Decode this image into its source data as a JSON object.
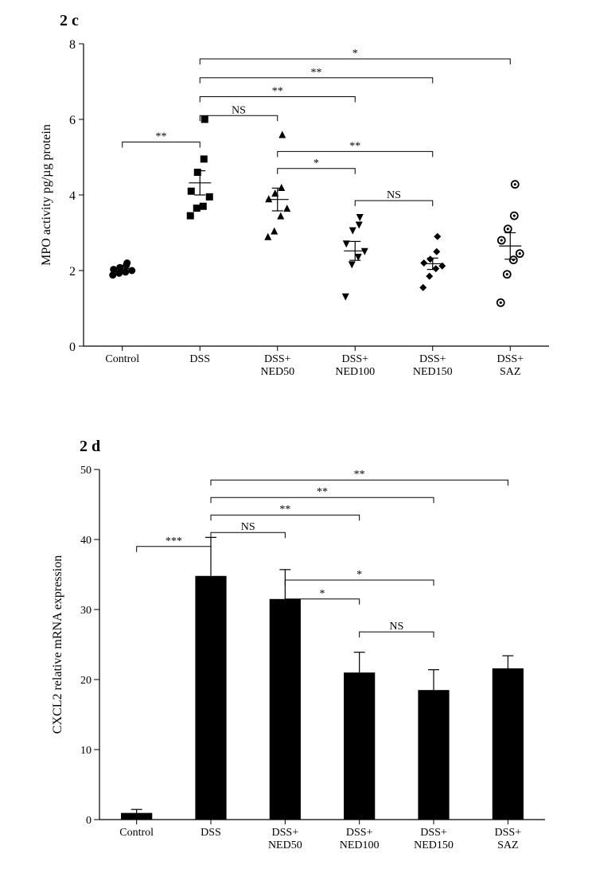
{
  "panel_c": {
    "label": "2 c",
    "type": "scatter",
    "ylabel": "MPO activity pg/µg protein",
    "ylim": [
      0,
      8
    ],
    "yticks": [
      0,
      2,
      4,
      6,
      8
    ],
    "categories": [
      "Control",
      "DSS",
      "DSS+\nNED50",
      "DSS+\nNED100",
      "DSS+\nNED150",
      "DSS+\nSAZ"
    ],
    "label_fontsize": 14,
    "tick_fontsize": 16,
    "cat_fontsize": 14,
    "point_size": 4.5,
    "groups": [
      {
        "marker": "circle",
        "mean": 2.05,
        "sem": 0.08,
        "points": [
          1.88,
          1.93,
          1.96,
          2.0,
          2.03,
          2.08,
          2.14,
          2.2
        ]
      },
      {
        "marker": "square",
        "mean": 4.32,
        "sem": 0.32,
        "points": [
          3.45,
          3.65,
          3.7,
          3.95,
          4.1,
          4.6,
          4.95,
          6.0
        ]
      },
      {
        "marker": "triangle-up",
        "mean": 3.88,
        "sem": 0.3,
        "points": [
          2.9,
          3.05,
          3.45,
          3.65,
          3.9,
          4.05,
          4.2,
          5.6
        ]
      },
      {
        "marker": "triangle-down",
        "mean": 2.52,
        "sem": 0.25,
        "points": [
          1.3,
          2.15,
          2.35,
          2.5,
          2.7,
          3.05,
          3.2,
          3.4
        ]
      },
      {
        "marker": "diamond",
        "mean": 2.18,
        "sem": 0.15,
        "points": [
          1.55,
          1.85,
          2.05,
          2.12,
          2.2,
          2.3,
          2.5,
          2.9
        ]
      },
      {
        "marker": "circle-open",
        "mean": 2.65,
        "sem": 0.35,
        "points": [
          1.15,
          1.9,
          2.28,
          2.45,
          2.8,
          3.1,
          3.45,
          4.28
        ]
      }
    ],
    "significance": [
      {
        "from": 0,
        "to": 1,
        "y": 5.4,
        "label": "**"
      },
      {
        "from": 1,
        "to": 5,
        "y": 7.6,
        "label": "*"
      },
      {
        "from": 1,
        "to": 4,
        "y": 7.1,
        "label": "**"
      },
      {
        "from": 1,
        "to": 3,
        "y": 6.6,
        "label": "**"
      },
      {
        "from": 1,
        "to": 2,
        "y": 6.1,
        "label": "NS"
      },
      {
        "from": 2,
        "to": 4,
        "y": 5.15,
        "label": "**"
      },
      {
        "from": 2,
        "to": 3,
        "y": 4.7,
        "label": "*"
      },
      {
        "from": 3,
        "to": 4,
        "y": 3.85,
        "label": "NS"
      }
    ],
    "axis_color": "#000000",
    "marker_color": "#000000",
    "bg": "#ffffff"
  },
  "panel_d": {
    "label": "2 d",
    "type": "bar",
    "ylabel": "CXCL2 relative mRNA expression",
    "ylim": [
      0,
      50
    ],
    "yticks": [
      0,
      10,
      20,
      30,
      40,
      50
    ],
    "categories": [
      "Control",
      "DSS",
      "DSS+\nNED50",
      "DSS+\nNED100",
      "DSS+\nNED150",
      "DSS+\nSAZ"
    ],
    "label_fontsize": 14,
    "tick_fontsize": 14,
    "cat_fontsize": 14,
    "bar_width": 0.42,
    "bar_color": "#000000",
    "bar_border": "#000000",
    "values": [
      {
        "mean": 0.95,
        "sem": 0.5
      },
      {
        "mean": 34.8,
        "sem": 5.5
      },
      {
        "mean": 31.5,
        "sem": 4.2
      },
      {
        "mean": 21.0,
        "sem": 2.9
      },
      {
        "mean": 18.5,
        "sem": 2.9
      },
      {
        "mean": 21.6,
        "sem": 1.8
      }
    ],
    "significance": [
      {
        "from": 0,
        "to": 1,
        "y": 39.0,
        "label": "***"
      },
      {
        "from": 1,
        "to": 5,
        "y": 48.5,
        "label": "**"
      },
      {
        "from": 1,
        "to": 4,
        "y": 46.0,
        "label": "**"
      },
      {
        "from": 1,
        "to": 3,
        "y": 43.5,
        "label": "**"
      },
      {
        "from": 1,
        "to": 2,
        "y": 41.0,
        "label": "NS"
      },
      {
        "from": 2,
        "to": 4,
        "y": 34.2,
        "label": "*"
      },
      {
        "from": 2,
        "to": 3,
        "y": 31.5,
        "label": "*"
      },
      {
        "from": 3,
        "to": 4,
        "y": 26.8,
        "label": "NS"
      }
    ],
    "bg": "#ffffff"
  }
}
